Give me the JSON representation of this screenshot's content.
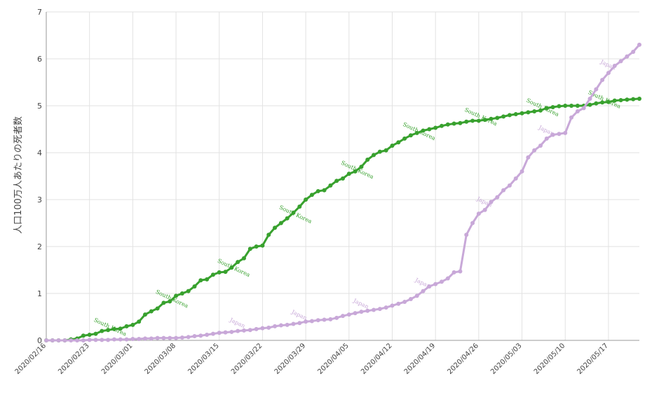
{
  "chart_data": {
    "type": "line",
    "y_label": "人口100万人あたりの死者数",
    "x": [
      "2020/02/16",
      "2020/02/17",
      "2020/02/18",
      "2020/02/19",
      "2020/02/20",
      "2020/02/21",
      "2020/02/22",
      "2020/02/23",
      "2020/02/24",
      "2020/02/25",
      "2020/02/26",
      "2020/02/27",
      "2020/02/28",
      "2020/02/29",
      "2020/03/01",
      "2020/03/02",
      "2020/03/03",
      "2020/03/04",
      "2020/03/05",
      "2020/03/06",
      "2020/03/07",
      "2020/03/08",
      "2020/03/09",
      "2020/03/10",
      "2020/03/11",
      "2020/03/12",
      "2020/03/13",
      "2020/03/14",
      "2020/03/15",
      "2020/03/16",
      "2020/03/17",
      "2020/03/18",
      "2020/03/19",
      "2020/03/20",
      "2020/03/21",
      "2020/03/22",
      "2020/03/23",
      "2020/03/24",
      "2020/03/25",
      "2020/03/26",
      "2020/03/27",
      "2020/03/28",
      "2020/03/29",
      "2020/03/30",
      "2020/03/31",
      "2020/04/01",
      "2020/04/02",
      "2020/04/03",
      "2020/04/04",
      "2020/04/05",
      "2020/04/06",
      "2020/04/07",
      "2020/04/08",
      "2020/04/09",
      "2020/04/10",
      "2020/04/11",
      "2020/04/12",
      "2020/04/13",
      "2020/04/14",
      "2020/04/15",
      "2020/04/16",
      "2020/04/17",
      "2020/04/18",
      "2020/04/19",
      "2020/04/20",
      "2020/04/21",
      "2020/04/22",
      "2020/04/23",
      "2020/04/24",
      "2020/04/25",
      "2020/04/26",
      "2020/04/27",
      "2020/04/28",
      "2020/04/29",
      "2020/04/30",
      "2020/05/01",
      "2020/05/02",
      "2020/05/03",
      "2020/05/04",
      "2020/05/05",
      "2020/05/06",
      "2020/05/07",
      "2020/05/08",
      "2020/05/09",
      "2020/05/10",
      "2020/05/11",
      "2020/05/12",
      "2020/05/13",
      "2020/05/14",
      "2020/05/15",
      "2020/05/16",
      "2020/05/17",
      "2020/05/18",
      "2020/05/19",
      "2020/05/20",
      "2020/05/21",
      "2020/05/22"
    ],
    "series": [
      {
        "name": "South Korea",
        "color": "#38a12e",
        "values": [
          0,
          0,
          0,
          0,
          0.02,
          0.04,
          0.1,
          0.12,
          0.14,
          0.2,
          0.22,
          0.24,
          0.25,
          0.3,
          0.33,
          0.4,
          0.55,
          0.62,
          0.68,
          0.8,
          0.83,
          0.95,
          1.0,
          1.05,
          1.15,
          1.28,
          1.3,
          1.4,
          1.45,
          1.46,
          1.55,
          1.67,
          1.75,
          1.95,
          2.0,
          2.02,
          2.25,
          2.4,
          2.5,
          2.6,
          2.72,
          2.85,
          3.0,
          3.1,
          3.18,
          3.2,
          3.3,
          3.4,
          3.45,
          3.55,
          3.6,
          3.7,
          3.85,
          3.95,
          4.02,
          4.05,
          4.15,
          4.22,
          4.3,
          4.37,
          4.42,
          4.47,
          4.5,
          4.53,
          4.57,
          4.6,
          4.62,
          4.63,
          4.66,
          4.68,
          4.68,
          4.7,
          4.72,
          4.74,
          4.77,
          4.8,
          4.82,
          4.84,
          4.86,
          4.88,
          4.9,
          4.95,
          4.97,
          4.99,
          5.0,
          5.0,
          5.0,
          5.0,
          5.02,
          5.05,
          5.07,
          5.08,
          5.11,
          5.12,
          5.13,
          5.14,
          5.15
        ]
      },
      {
        "name": "Japan",
        "color": "#c8a8d8",
        "values": [
          0,
          0,
          0,
          0,
          0,
          0,
          0,
          0.01,
          0.01,
          0.01,
          0.01,
          0.02,
          0.02,
          0.02,
          0.03,
          0.03,
          0.04,
          0.04,
          0.05,
          0.05,
          0.05,
          0.05,
          0.06,
          0.07,
          0.09,
          0.1,
          0.12,
          0.14,
          0.16,
          0.17,
          0.18,
          0.2,
          0.21,
          0.22,
          0.24,
          0.26,
          0.27,
          0.3,
          0.32,
          0.33,
          0.35,
          0.37,
          0.4,
          0.41,
          0.43,
          0.44,
          0.45,
          0.48,
          0.52,
          0.55,
          0.58,
          0.61,
          0.63,
          0.65,
          0.67,
          0.7,
          0.74,
          0.78,
          0.82,
          0.88,
          0.95,
          1.05,
          1.15,
          1.2,
          1.25,
          1.32,
          1.45,
          1.47,
          2.25,
          2.5,
          2.7,
          2.78,
          2.95,
          3.05,
          3.2,
          3.3,
          3.45,
          3.6,
          3.9,
          4.05,
          4.15,
          4.3,
          4.38,
          4.4,
          4.42,
          4.75,
          4.88,
          4.95,
          5.15,
          5.35,
          5.55,
          5.7,
          5.85,
          5.95,
          6.05,
          6.15,
          6.3
        ]
      }
    ],
    "xticks": [
      "2020/02/16",
      "2020/02/23",
      "2020/03/01",
      "2020/03/08",
      "2020/03/15",
      "2020/03/22",
      "2020/03/29",
      "2020/04/05",
      "2020/04/12",
      "2020/04/19",
      "2020/04/26",
      "2020/05/03",
      "2020/05/10",
      "2020/05/17"
    ],
    "ylim": [
      0,
      7
    ],
    "yticks": [
      0,
      1,
      2,
      3,
      4,
      5,
      6,
      7
    ],
    "grid": true
  }
}
